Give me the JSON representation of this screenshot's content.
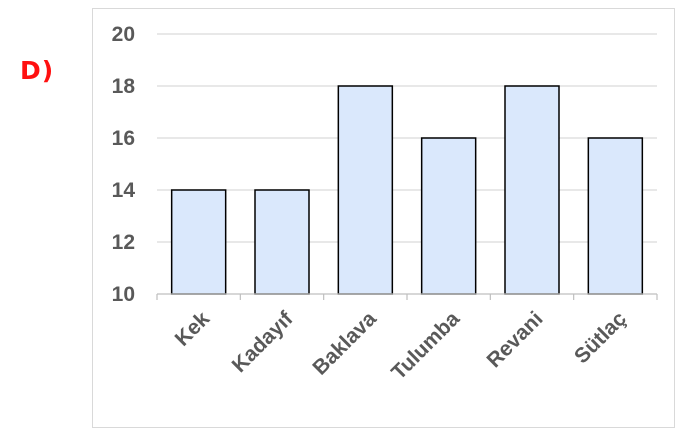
{
  "option_label": "D)",
  "chart_data": {
    "type": "bar",
    "categories": [
      "Kek",
      "Kadayıf",
      "Baklava",
      "Tulumba",
      "Revani",
      "Sütlaç"
    ],
    "values": [
      14,
      14,
      18,
      16,
      18,
      16
    ],
    "ylim": [
      10,
      20
    ],
    "yticks": [
      10,
      12,
      14,
      16,
      18,
      20
    ],
    "grid": true,
    "bar_fill": "#dae8fc",
    "bar_stroke": "#000000",
    "label_color": "#595959",
    "option_color": "#ff1010"
  }
}
